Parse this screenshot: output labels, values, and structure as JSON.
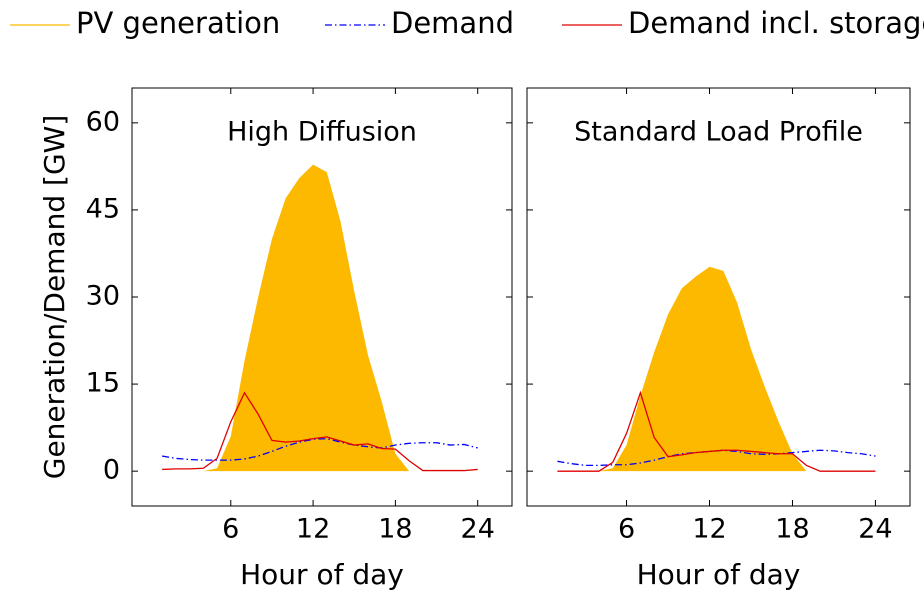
{
  "chart_data": [
    {
      "type": "line",
      "title": "High Diffusion",
      "xlabel": "Hour of day",
      "ylabel": "Generation/Demand [GW]",
      "x": [
        1,
        2,
        3,
        4,
        5,
        6,
        7,
        8,
        9,
        10,
        11,
        12,
        13,
        14,
        15,
        16,
        17,
        18,
        19,
        20,
        21,
        22,
        23,
        24
      ],
      "xlim": [
        -1.2,
        26.5
      ],
      "xticks": [
        6,
        12,
        18,
        24
      ],
      "ylim": [
        -6,
        66
      ],
      "yticks": [
        0,
        15,
        30,
        45,
        60
      ],
      "ytick_labels": true,
      "series": [
        {
          "name": "PV generation",
          "color": "#fdb900",
          "kind": "area",
          "values": [
            0,
            0,
            0,
            0,
            0.5,
            6,
            19,
            30,
            40,
            47,
            50.5,
            52.8,
            51.5,
            43,
            31,
            20,
            12,
            3,
            0,
            0,
            0,
            0,
            0,
            0
          ]
        },
        {
          "name": "Demand",
          "color": "#0000ff",
          "kind": "dashdot",
          "values": [
            2.6,
            2.2,
            2.0,
            1.9,
            1.9,
            1.9,
            2.1,
            2.6,
            3.4,
            4.3,
            5.0,
            5.5,
            5.6,
            5.0,
            4.5,
            4.2,
            4.0,
            4.5,
            4.8,
            4.9,
            4.9,
            4.5,
            4.6,
            4.0
          ]
        },
        {
          "name": "Demand incl. storage",
          "color": "#e00000",
          "kind": "line",
          "values": [
            0.3,
            0.4,
            0.4,
            0.5,
            2.2,
            8.5,
            13.5,
            9.8,
            5.3,
            5.0,
            5.2,
            5.6,
            5.9,
            5.2,
            4.5,
            4.7,
            3.9,
            3.8,
            1.8,
            0.1,
            0.1,
            0.1,
            0.1,
            0.3
          ]
        }
      ]
    },
    {
      "type": "line",
      "title": "Standard Load Profile",
      "xlabel": "Hour of day",
      "x": [
        1,
        2,
        3,
        4,
        5,
        6,
        7,
        8,
        9,
        10,
        11,
        12,
        13,
        14,
        15,
        16,
        17,
        18,
        19,
        20,
        21,
        22,
        23,
        24
      ],
      "xlim": [
        -1.2,
        26.5
      ],
      "xticks": [
        6,
        12,
        18,
        24
      ],
      "ylim": [
        -6,
        66
      ],
      "yticks": [
        0,
        15,
        30,
        45,
        60
      ],
      "ytick_labels": false,
      "series": [
        {
          "color": "#fdb900",
          "kind": "area",
          "values": [
            0,
            0,
            0,
            0,
            0.5,
            4.5,
            13,
            20.5,
            27,
            31.5,
            33.5,
            35.2,
            34.5,
            29,
            21,
            14.5,
            8.5,
            3,
            0,
            0,
            0,
            0,
            0,
            0
          ]
        },
        {
          "color": "#0000ff",
          "kind": "dashdot",
          "values": [
            1.7,
            1.3,
            1.0,
            1.0,
            1.1,
            1.1,
            1.4,
            1.9,
            2.5,
            3.0,
            3.2,
            3.4,
            3.6,
            3.4,
            3.0,
            2.9,
            3.0,
            3.2,
            3.4,
            3.6,
            3.5,
            3.2,
            3.0,
            2.6
          ]
        },
        {
          "color": "#e00000",
          "kind": "line",
          "values": [
            0,
            0,
            0,
            0,
            1.5,
            6.5,
            13.5,
            5.8,
            2.5,
            2.8,
            3.2,
            3.4,
            3.6,
            3.6,
            3.4,
            3.2,
            3.0,
            3.0,
            1.0,
            0,
            0,
            0,
            0,
            0
          ]
        }
      ]
    }
  ]
}
